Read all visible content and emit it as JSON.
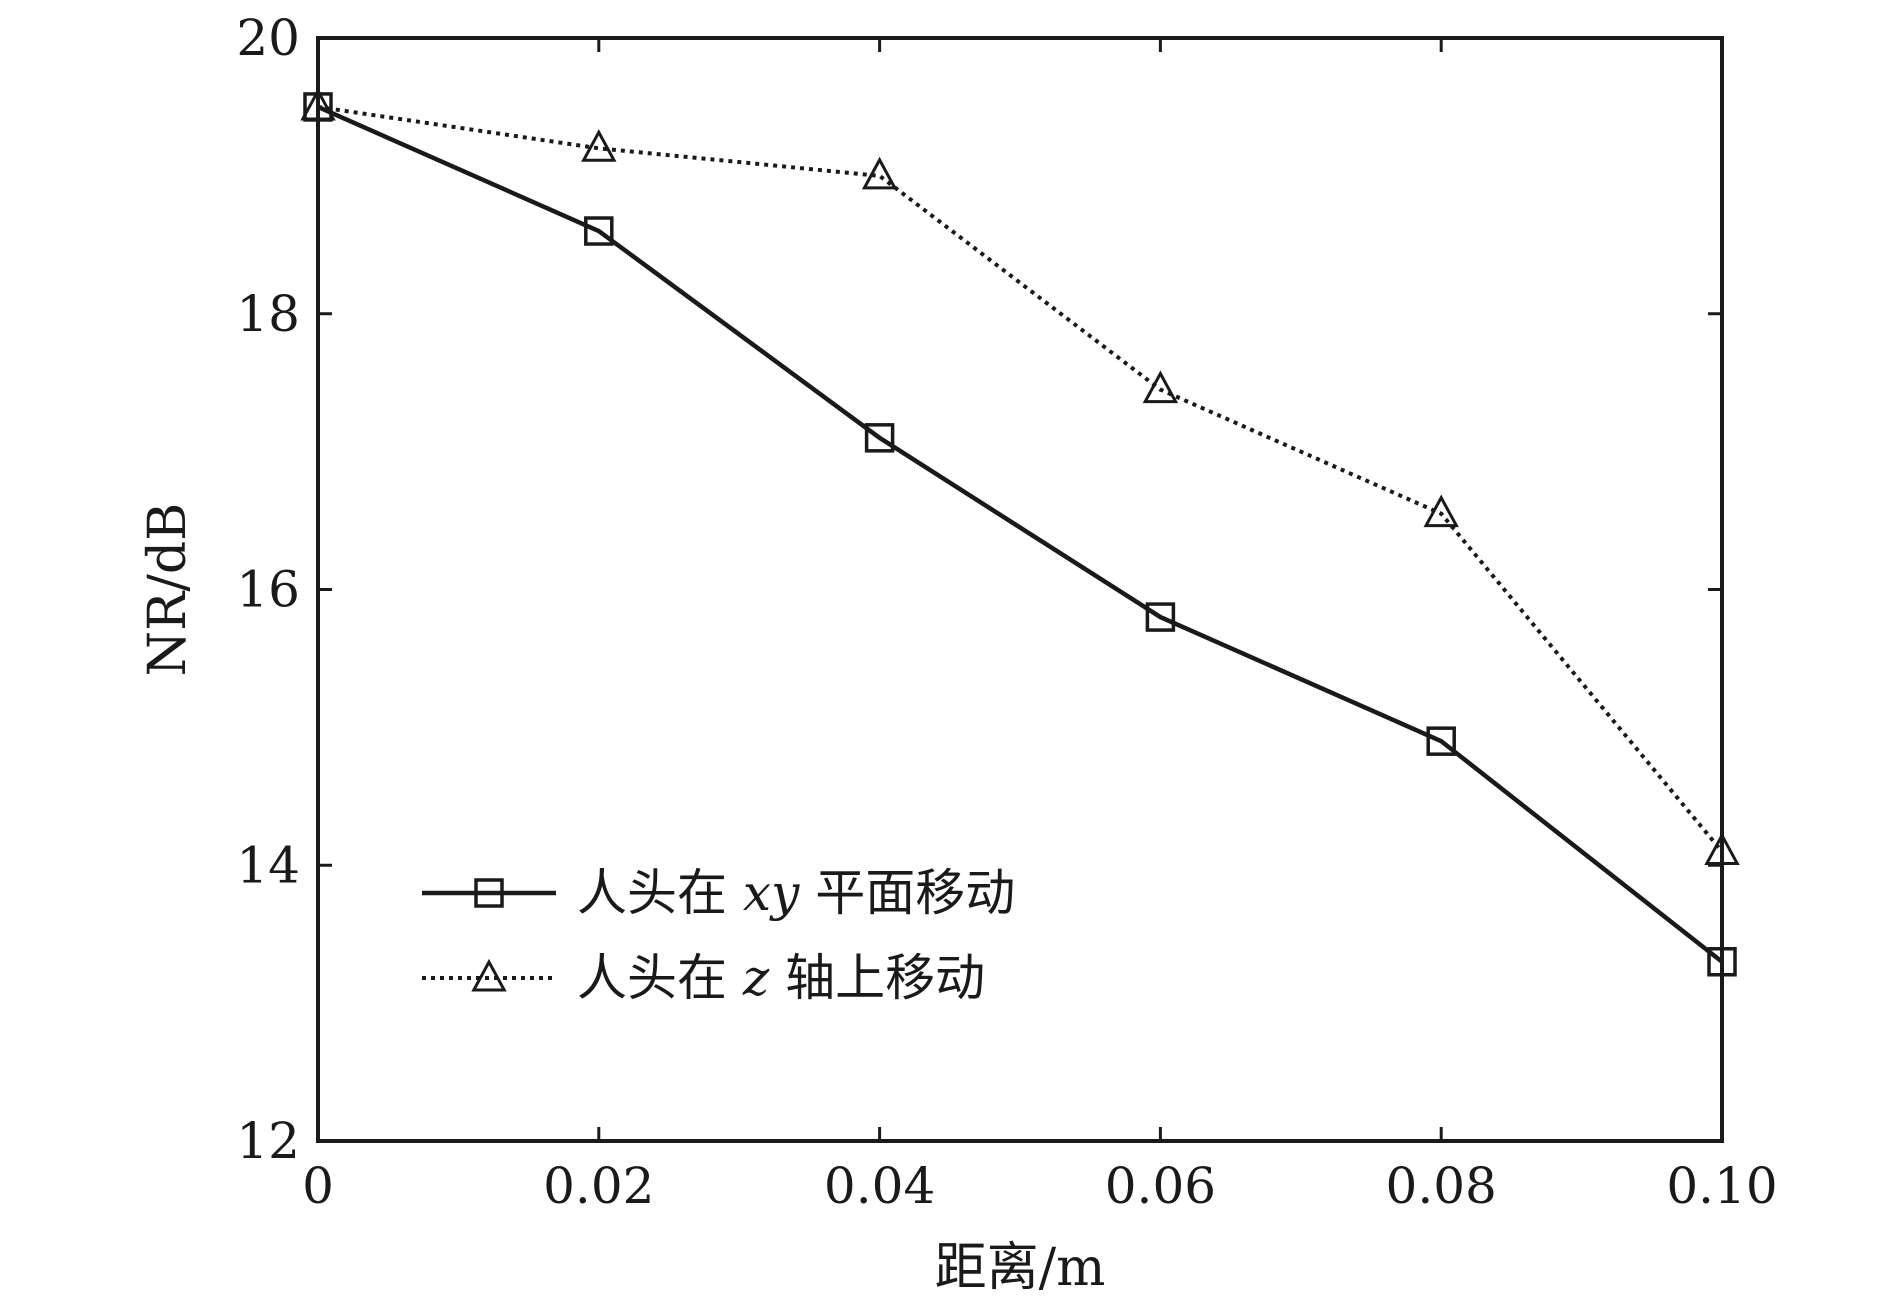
{
  "chart_data": {
    "type": "line",
    "xlabel": "距离/m",
    "ylabel": "NR/dB",
    "xlim": [
      0,
      0.1
    ],
    "ylim": [
      12,
      20
    ],
    "x_ticks": [
      0,
      0.02,
      0.04,
      0.06,
      0.08,
      0.1
    ],
    "x_tick_labels": [
      "0",
      "0.02",
      "0.04",
      "0.06",
      "0.08",
      "0.10"
    ],
    "y_ticks": [
      12,
      14,
      16,
      18,
      20
    ],
    "y_tick_labels": [
      "12",
      "14",
      "16",
      "18",
      "20"
    ],
    "grid": false,
    "legend_position": "lower-left",
    "x": [
      0,
      0.02,
      0.04,
      0.06,
      0.08,
      0.1
    ],
    "series": [
      {
        "name": "人头在 xy 平面移动",
        "values": [
          19.5,
          18.6,
          17.1,
          15.8,
          14.9,
          13.3
        ],
        "line_style": "solid",
        "marker": "square",
        "color": "#1a1a1a"
      },
      {
        "name": "人头在 z 轴上移动",
        "values": [
          19.5,
          19.2,
          19.0,
          17.45,
          16.55,
          14.1
        ],
        "line_style": "dotted",
        "marker": "triangle",
        "color": "#1a1a1a"
      }
    ],
    "legend": [
      {
        "prefix": "人头在 ",
        "var": "xy",
        "suffix": " 平面移动"
      },
      {
        "prefix": "人头在 ",
        "var": "z",
        "suffix": " 轴上移动"
      }
    ]
  }
}
